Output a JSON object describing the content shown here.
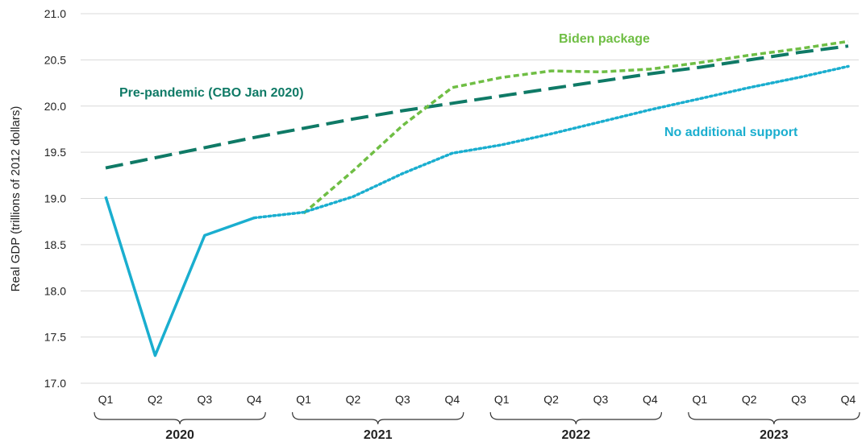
{
  "chart_data": {
    "type": "line",
    "title": "",
    "ylabel": "Real GDP (trillions of 2012 dollars)",
    "xlabel": "",
    "ylim": [
      17.0,
      21.0
    ],
    "yticks": [
      "17.0",
      "17.5",
      "18.0",
      "18.5",
      "19.0",
      "19.5",
      "20.0",
      "20.5",
      "21.0"
    ],
    "grid": "horizontal",
    "categories": [
      "Q1",
      "Q2",
      "Q3",
      "Q4",
      "Q1",
      "Q2",
      "Q3",
      "Q4",
      "Q1",
      "Q2",
      "Q3",
      "Q4",
      "Q1",
      "Q2",
      "Q3",
      "Q4"
    ],
    "years": [
      "2020",
      "2021",
      "2022",
      "2023"
    ],
    "series": [
      {
        "name": "Pre-pandemic (CBO Jan 2020)",
        "color": "#0f7a66",
        "style": "long-dash",
        "values": [
          19.33,
          19.44,
          19.55,
          19.66,
          19.76,
          19.86,
          19.95,
          20.03,
          20.11,
          20.19,
          20.27,
          20.35,
          20.42,
          20.5,
          20.58,
          20.65
        ]
      },
      {
        "name": "Biden package",
        "color": "#6fbe44",
        "style": "dashed",
        "values": [
          null,
          null,
          null,
          null,
          18.84,
          19.3,
          19.79,
          20.2,
          20.31,
          20.38,
          20.37,
          20.4,
          20.47,
          20.55,
          20.62,
          20.7
        ]
      },
      {
        "name": "No additional support",
        "color": "#1aaecf",
        "style": "dotted",
        "values": [
          null,
          null,
          null,
          18.79,
          18.85,
          19.02,
          19.27,
          19.49,
          19.58,
          19.7,
          19.83,
          19.96,
          20.08,
          20.2,
          20.31,
          20.43
        ]
      },
      {
        "name": "",
        "color": "#1aaecf",
        "style": "solid",
        "values": [
          19.02,
          17.3,
          18.6,
          18.79,
          null,
          null,
          null,
          null,
          null,
          null,
          null,
          null,
          null,
          null,
          null,
          null
        ]
      }
    ]
  }
}
